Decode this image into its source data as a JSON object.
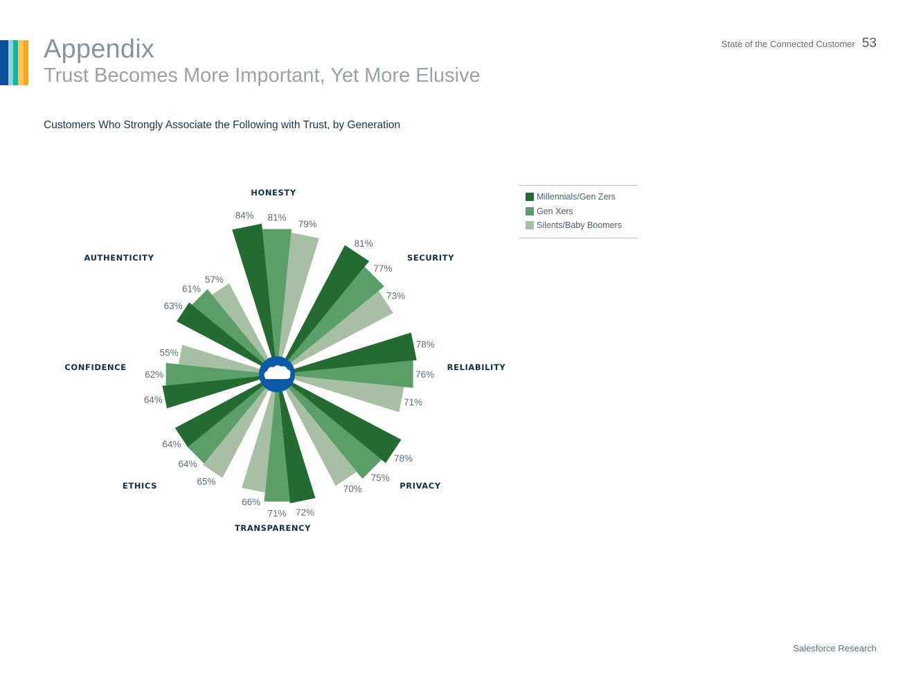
{
  "header": {
    "title": "Appendix",
    "subtitle": "Trust Becomes More Important, Yet More Elusive",
    "document_name": "State of the Connected Customer",
    "page_number": "53",
    "accent_colors": [
      "#0b4f9c",
      "#8ed4d4",
      "#0db3a6",
      "#fdc453",
      "#f5a623"
    ]
  },
  "chart_title": "Customers Who Strongly Associate the Following with Trust, by Generation",
  "legend": {
    "items": [
      {
        "label": "Millennials/Gen Zers",
        "color": "#246b31"
      },
      {
        "label": "Gen Xers",
        "color": "#5c9e67"
      },
      {
        "label": "Silents/Baby Boomers",
        "color": "#a7c0a3"
      }
    ]
  },
  "center_icon": {
    "name": "salesforce-cloud-icon",
    "color": "#0b5aa8"
  },
  "footer": {
    "text": "Salesforce Research"
  },
  "chart_data": {
    "type": "radial-bar",
    "title": "Customers Who Strongly Associate the Following with Trust, by Generation",
    "categories": [
      "Honesty",
      "Security",
      "Reliability",
      "Privacy",
      "Transparency",
      "Ethics",
      "Confidence",
      "Authenticity"
    ],
    "category_labels": [
      "HONESTY",
      "SECURITY",
      "RELIABILITY",
      "PRIVACY",
      "TRANSPARENCY",
      "ETHICS",
      "CONFIDENCE",
      "AUTHENTICITY"
    ],
    "series": [
      {
        "name": "Millennials/Gen Zers",
        "color": "#246b31",
        "values": [
          84,
          81,
          78,
          78,
          72,
          64,
          64,
          63
        ]
      },
      {
        "name": "Gen Xers",
        "color": "#5c9e67",
        "values": [
          81,
          77,
          76,
          75,
          71,
          64,
          62,
          61
        ]
      },
      {
        "name": "Silents/Baby Boomers",
        "color": "#a7c0a3",
        "values": [
          79,
          73,
          71,
          70,
          66,
          65,
          55,
          57
        ]
      }
    ],
    "unit": "%",
    "legend_position": "right",
    "grid": false
  }
}
